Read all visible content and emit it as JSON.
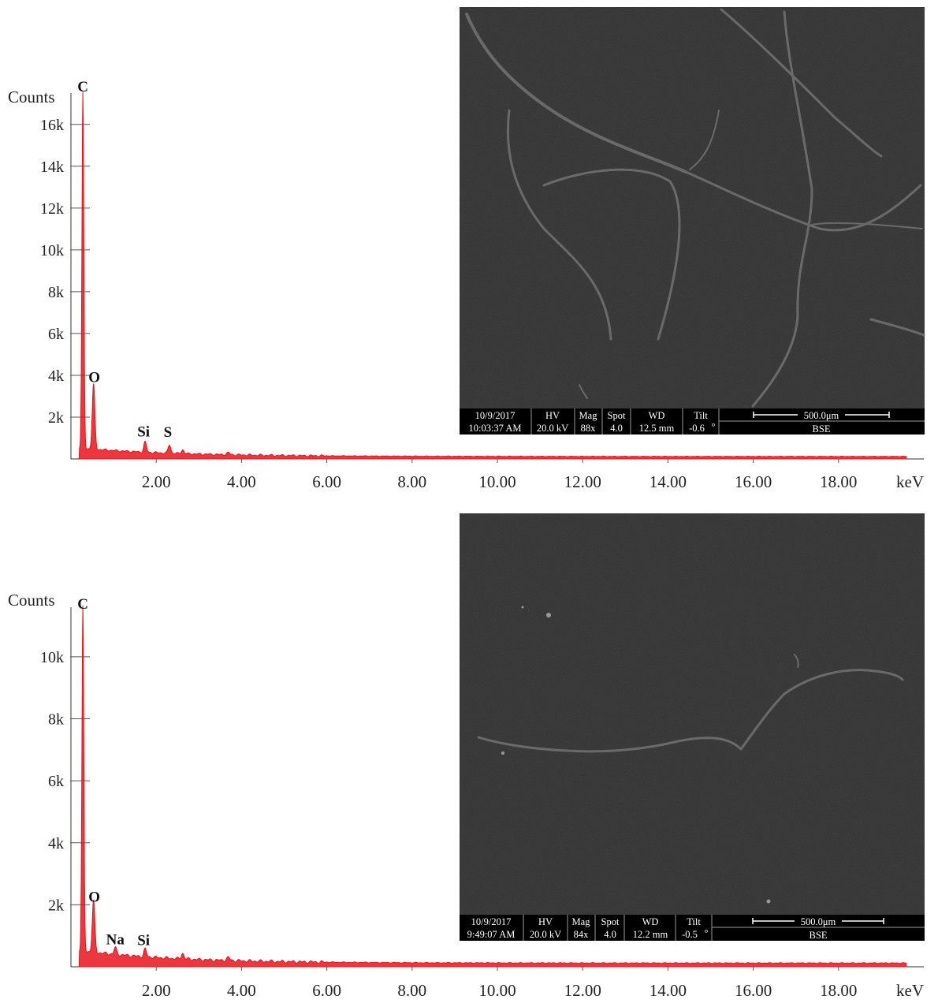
{
  "chart_data": [
    {
      "type": "line",
      "ylabel": "Counts",
      "xlabel": "keV",
      "x_ticks": [
        "2.00",
        "4.00",
        "6.00",
        "8.00",
        "10.00",
        "12.00",
        "14.00",
        "16.00",
        "18.00"
      ],
      "y_ticks": [
        "2k",
        "4k",
        "6k",
        "8k",
        "10k",
        "12k",
        "14k",
        "16k"
      ],
      "xlim": [
        0,
        20
      ],
      "ylim": [
        0,
        17500
      ],
      "series_color": "#e8141b",
      "peaks": [
        {
          "label": "C",
          "x": 0.28,
          "y": 17200
        },
        {
          "label": "O",
          "x": 0.53,
          "y": 3300
        },
        {
          "label": "Si",
          "x": 1.74,
          "y": 700
        },
        {
          "label": "S",
          "x": 2.31,
          "y": 600
        }
      ],
      "inset": {
        "date": "10/9/2017",
        "time": "10:03:37 AM",
        "hv_label": "HV",
        "hv": "20.0 kV",
        "mag_label": "Mag",
        "mag": "88x",
        "spot_label": "Spot",
        "spot": "4.0",
        "wd_label": "WD",
        "wd": "12.5 mm",
        "tilt_label": "Tilt",
        "tilt": "-0.6",
        "tilt_unit": "°",
        "scale": "500.0μm",
        "detector": "BSE"
      }
    },
    {
      "type": "line",
      "ylabel": "Counts",
      "xlabel": "keV",
      "x_ticks": [
        "2.00",
        "4.00",
        "6.00",
        "8.00",
        "10.00",
        "12.00",
        "14.00",
        "16.00",
        "18.00"
      ],
      "y_ticks": [
        "2k",
        "4k",
        "6k",
        "8k",
        "10k"
      ],
      "xlim": [
        0,
        20
      ],
      "ylim": [
        0,
        11600
      ],
      "series_color": "#e8141b",
      "peaks": [
        {
          "label": "C",
          "x": 0.28,
          "y": 11300
        },
        {
          "label": "O",
          "x": 0.53,
          "y": 1850
        },
        {
          "label": "Na",
          "x": 1.04,
          "y": 420
        },
        {
          "label": "Si",
          "x": 1.74,
          "y": 450
        }
      ],
      "inset": {
        "date": "10/9/2017",
        "time": "9:49:07 AM",
        "hv_label": "HV",
        "hv": "20.0 kV",
        "mag_label": "Mag",
        "mag": "84x",
        "spot_label": "Spot",
        "spot": "4.0",
        "wd_label": "WD",
        "wd": "12.2 mm",
        "tilt_label": "Tilt",
        "tilt": "-0.5",
        "tilt_unit": "°",
        "scale": "500.0μm",
        "detector": "BSE"
      }
    }
  ]
}
